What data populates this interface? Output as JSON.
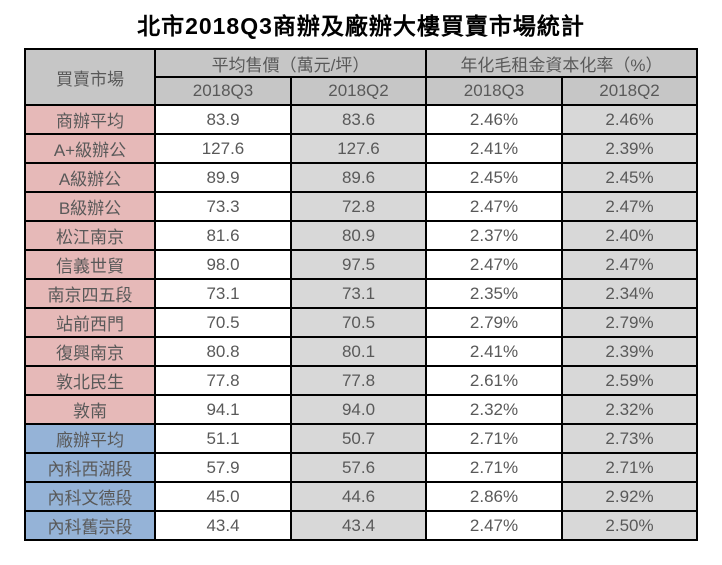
{
  "title": "北市2018Q3商辦及廠辦大樓買賣市場統計",
  "chart_data": {
    "type": "table",
    "market_header": "買賣市場",
    "price_group_header": "平均售價（萬元/坪）",
    "caprate_group_header": "年化毛租金資本化率（%）",
    "sub_headers": [
      "2018Q3",
      "2018Q2",
      "2018Q3",
      "2018Q2"
    ],
    "rows": [
      {
        "market": "商辦平均",
        "category": "commercial",
        "price_q3": "83.9",
        "price_q2": "83.6",
        "cap_q3": "2.46%",
        "cap_q2": "2.46%"
      },
      {
        "market": "A+級辦公",
        "category": "commercial",
        "price_q3": "127.6",
        "price_q2": "127.6",
        "cap_q3": "2.41%",
        "cap_q2": "2.39%"
      },
      {
        "market": "A級辦公",
        "category": "commercial",
        "price_q3": "89.9",
        "price_q2": "89.6",
        "cap_q3": "2.45%",
        "cap_q2": "2.45%"
      },
      {
        "market": "B級辦公",
        "category": "commercial",
        "price_q3": "73.3",
        "price_q2": "72.8",
        "cap_q3": "2.47%",
        "cap_q2": "2.47%"
      },
      {
        "market": "松江南京",
        "category": "commercial",
        "price_q3": "81.6",
        "price_q2": "80.9",
        "cap_q3": "2.37%",
        "cap_q2": "2.40%"
      },
      {
        "market": "信義世貿",
        "category": "commercial",
        "price_q3": "98.0",
        "price_q2": "97.5",
        "cap_q3": "2.47%",
        "cap_q2": "2.47%"
      },
      {
        "market": "南京四五段",
        "category": "commercial",
        "price_q3": "73.1",
        "price_q2": "73.1",
        "cap_q3": "2.35%",
        "cap_q2": "2.34%"
      },
      {
        "market": "站前西門",
        "category": "commercial",
        "price_q3": "70.5",
        "price_q2": "70.5",
        "cap_q3": "2.79%",
        "cap_q2": "2.79%"
      },
      {
        "market": "復興南京",
        "category": "commercial",
        "price_q3": "80.8",
        "price_q2": "80.1",
        "cap_q3": "2.41%",
        "cap_q2": "2.39%"
      },
      {
        "market": "敦北民生",
        "category": "commercial",
        "price_q3": "77.8",
        "price_q2": "77.8",
        "cap_q3": "2.61%",
        "cap_q2": "2.59%"
      },
      {
        "market": "敦南",
        "category": "commercial",
        "price_q3": "94.1",
        "price_q2": "94.0",
        "cap_q3": "2.32%",
        "cap_q2": "2.32%"
      },
      {
        "market": "廠辦平均",
        "category": "factory",
        "price_q3": "51.1",
        "price_q2": "50.7",
        "cap_q3": "2.71%",
        "cap_q2": "2.73%"
      },
      {
        "market": "內科西湖段",
        "category": "factory",
        "price_q3": "57.9",
        "price_q2": "57.6",
        "cap_q3": "2.71%",
        "cap_q2": "2.71%"
      },
      {
        "market": "內科文德段",
        "category": "factory",
        "price_q3": "45.0",
        "price_q2": "44.6",
        "cap_q3": "2.86%",
        "cap_q2": "2.92%"
      },
      {
        "market": "內科舊宗段",
        "category": "factory",
        "price_q3": "43.4",
        "price_q2": "43.4",
        "cap_q3": "2.47%",
        "cap_q2": "2.50%"
      }
    ]
  },
  "colors": {
    "commercial_row_bg": "#e6b9b8",
    "factory_row_bg": "#95b3d7",
    "header_bg": "#c6c6c6",
    "q2_column_bg": "#d8d8d8",
    "q3_column_bg": "#ffffff",
    "border": "#000000",
    "data_text": "#595959",
    "title_text": "#000000"
  }
}
